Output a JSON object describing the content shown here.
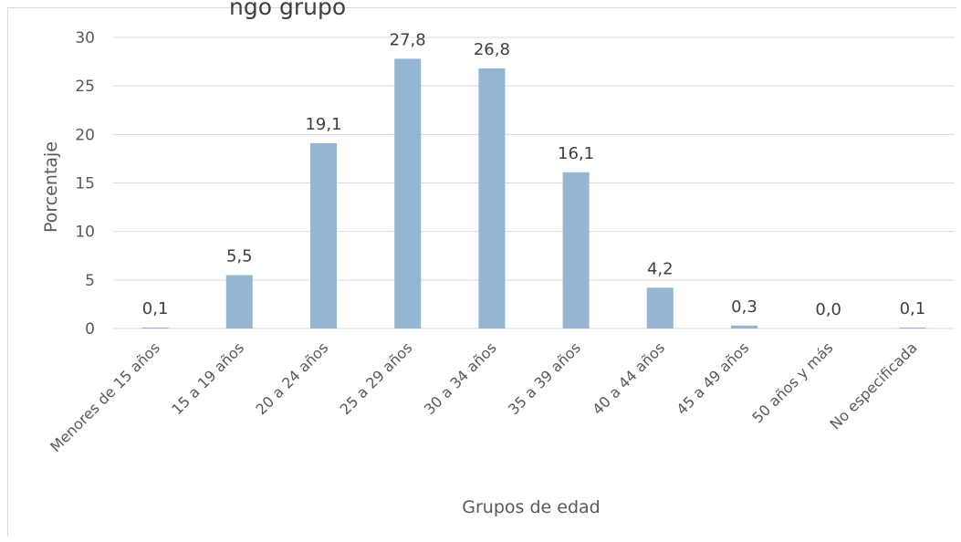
{
  "chart_data": {
    "type": "bar",
    "title_fragment": "ngo grupo",
    "categories": [
      "Menores de 15 años",
      "15 a 19 años",
      "20 a 24 años",
      "25 a 29 años",
      "30 a 34 años",
      "35 a 39 años",
      "40 a 44 años",
      "45 a 49 años",
      "50 años y más",
      "No especificada"
    ],
    "values": [
      0.1,
      5.5,
      19.1,
      27.8,
      26.8,
      16.1,
      4.2,
      0.3,
      0.0,
      0.1
    ],
    "data_labels": [
      "0,1",
      "5,5",
      "19,1",
      "27,8",
      "26,8",
      "16,1",
      "4,2",
      "0,3",
      "0,0",
      "0,1"
    ],
    "xlabel": "Grupos de edad",
    "ylabel": "Porcentaje",
    "ylim": [
      0,
      30
    ],
    "yticks": [
      0,
      5,
      10,
      15,
      20,
      25,
      30
    ],
    "grid": true,
    "legend": "none",
    "bar_color": "#94b6d2"
  }
}
